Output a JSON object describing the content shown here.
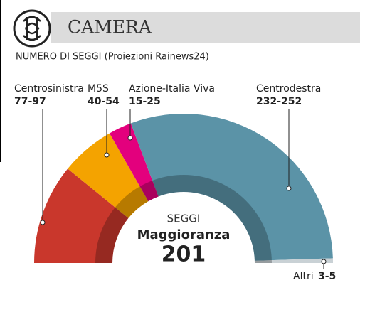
{
  "header": {
    "title": "CAMERA"
  },
  "chart_data": {
    "type": "semi-donut",
    "subtitle": "NUMERO DI SEGGI (Proiezioni Rainews24)",
    "categories": [
      "Centrosinistra",
      "M5S",
      "Azione-Italia Viva",
      "Centrodestra",
      "Altri"
    ],
    "low": [
      77,
      40,
      15,
      232,
      3
    ],
    "high": [
      97,
      54,
      25,
      252,
      5
    ],
    "value_labels": [
      "77-97",
      "40-54",
      "15-25",
      "232-252",
      "3-5"
    ],
    "colors": [
      "#c9372c",
      "#f4a300",
      "#e3007d",
      "#5b93a7",
      "#c9d1d5"
    ],
    "center_label": "SEGGI",
    "majority_label": "Maggioranza",
    "majority_value": 201
  }
}
